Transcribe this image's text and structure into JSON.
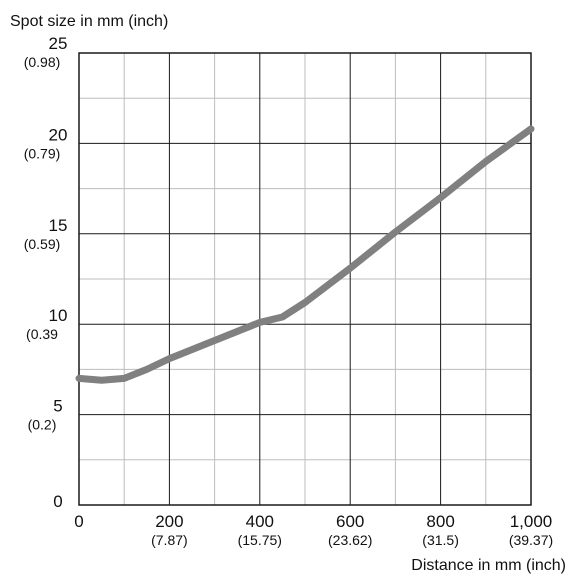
{
  "chart_data": {
    "type": "line",
    "title": "",
    "ylabel": "Spot size in mm (inch)",
    "xlabel": "Distance in mm (inch)",
    "xlim": [
      0,
      1000
    ],
    "ylim": [
      0,
      25
    ],
    "grid": true,
    "x_ticks": [
      {
        "value": 0,
        "label": "0",
        "sub": ""
      },
      {
        "value": 200,
        "label": "200",
        "sub": "(7.87)"
      },
      {
        "value": 400,
        "label": "400",
        "sub": "(15.75)"
      },
      {
        "value": 600,
        "label": "600",
        "sub": "(23.62)"
      },
      {
        "value": 800,
        "label": "800",
        "sub": "(31.5)"
      },
      {
        "value": 1000,
        "label": "1,000",
        "sub": "(39.37)"
      }
    ],
    "y_ticks": [
      {
        "value": 0,
        "label": "0",
        "sub": ""
      },
      {
        "value": 5,
        "label": "5",
        "sub": "(0.2)"
      },
      {
        "value": 10,
        "label": "10",
        "sub": "(0.39"
      },
      {
        "value": 15,
        "label": "15",
        "sub": "(0.59)"
      },
      {
        "value": 20,
        "label": "20",
        "sub": "(0.79)"
      },
      {
        "value": 25,
        "label": "25",
        "sub": "(0.98)"
      }
    ],
    "series": [
      {
        "color": "#808080",
        "points": [
          [
            0,
            7.0
          ],
          [
            50,
            6.9
          ],
          [
            100,
            7.0
          ],
          [
            150,
            7.5
          ],
          [
            200,
            8.1
          ],
          [
            300,
            9.1
          ],
          [
            400,
            10.1
          ],
          [
            450,
            10.4
          ],
          [
            500,
            11.2
          ],
          [
            600,
            13.1
          ],
          [
            700,
            15.1
          ],
          [
            800,
            17.0
          ],
          [
            900,
            19.0
          ],
          [
            1000,
            20.8
          ]
        ]
      }
    ]
  }
}
